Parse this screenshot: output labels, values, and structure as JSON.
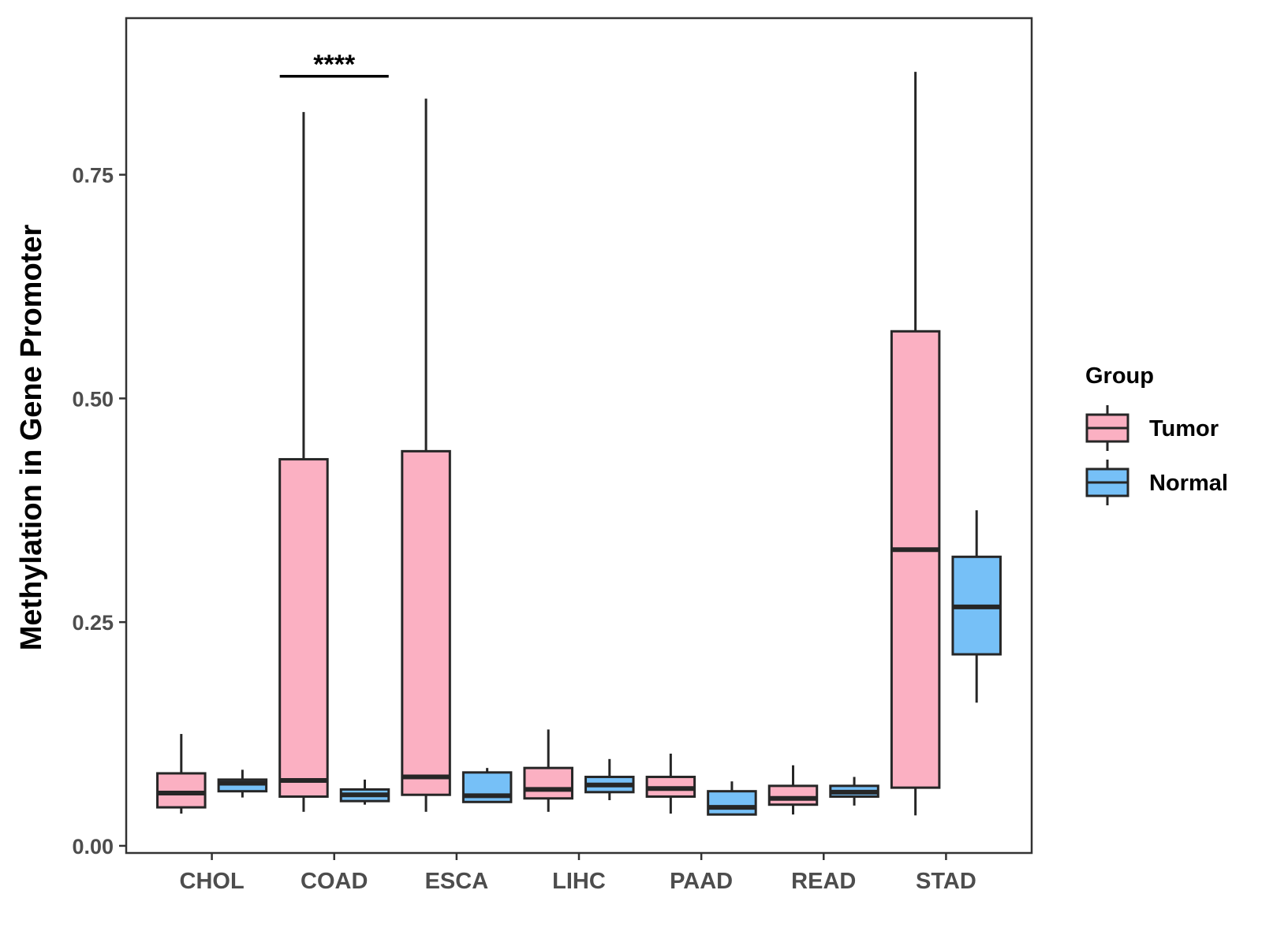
{
  "chart_data": {
    "type": "boxplot",
    "title": "",
    "xlabel": "",
    "ylabel": "Methylation in Gene Promoter",
    "ylim": [
      -0.008,
      0.925
    ],
    "yticks": [
      0.0,
      0.25,
      0.5,
      0.75
    ],
    "ytick_labels": [
      "0.00",
      "0.25",
      "0.50",
      "0.75"
    ],
    "grid": false,
    "categories": [
      "CHOL",
      "COAD",
      "ESCA",
      "LIHC",
      "PAAD",
      "READ",
      "STAD"
    ],
    "legend": {
      "title": "Group",
      "position": "right",
      "entries": [
        {
          "name": "Tumor",
          "color": "#FBB0C2"
        },
        {
          "name": "Normal",
          "color": "#76C0F7"
        }
      ]
    },
    "series": [
      {
        "name": "Tumor",
        "color": "#FBB0C2",
        "boxes": [
          {
            "category": "CHOL",
            "min": 0.036,
            "q1": 0.043,
            "median": 0.059,
            "q3": 0.081,
            "max": 0.125
          },
          {
            "category": "COAD",
            "min": 0.038,
            "q1": 0.055,
            "median": 0.073,
            "q3": 0.432,
            "max": 0.82
          },
          {
            "category": "ESCA",
            "min": 0.038,
            "q1": 0.057,
            "median": 0.077,
            "q3": 0.441,
            "max": 0.835
          },
          {
            "category": "LIHC",
            "min": 0.038,
            "q1": 0.053,
            "median": 0.063,
            "q3": 0.087,
            "max": 0.13
          },
          {
            "category": "PAAD",
            "min": 0.036,
            "q1": 0.055,
            "median": 0.064,
            "q3": 0.077,
            "max": 0.103
          },
          {
            "category": "READ",
            "min": 0.035,
            "q1": 0.046,
            "median": 0.053,
            "q3": 0.067,
            "max": 0.09
          },
          {
            "category": "STAD",
            "min": 0.034,
            "q1": 0.065,
            "median": 0.331,
            "q3": 0.575,
            "max": 0.865
          }
        ]
      },
      {
        "name": "Normal",
        "color": "#76C0F7",
        "boxes": [
          {
            "category": "CHOL",
            "min": 0.054,
            "q1": 0.061,
            "median": 0.07,
            "q3": 0.074,
            "max": 0.085
          },
          {
            "category": "COAD",
            "min": 0.046,
            "q1": 0.05,
            "median": 0.057,
            "q3": 0.063,
            "max": 0.074
          },
          {
            "category": "ESCA",
            "min": 0.049,
            "q1": 0.049,
            "median": 0.056,
            "q3": 0.082,
            "max": 0.087
          },
          {
            "category": "LIHC",
            "min": 0.051,
            "q1": 0.06,
            "median": 0.068,
            "q3": 0.077,
            "max": 0.097
          },
          {
            "category": "PAAD",
            "min": 0.035,
            "q1": 0.035,
            "median": 0.043,
            "q3": 0.061,
            "max": 0.072
          },
          {
            "category": "READ",
            "min": 0.045,
            "q1": 0.055,
            "median": 0.06,
            "q3": 0.067,
            "max": 0.077
          },
          {
            "category": "STAD",
            "min": 0.16,
            "q1": 0.214,
            "median": 0.267,
            "q3": 0.323,
            "max": 0.375
          }
        ]
      }
    ],
    "annotations": [
      {
        "category": "COAD",
        "label": "****",
        "y": 0.86
      }
    ]
  }
}
